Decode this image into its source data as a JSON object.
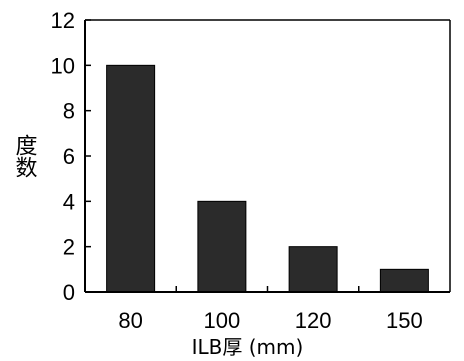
{
  "chart_data": {
    "type": "bar",
    "categories": [
      "80",
      "100",
      "120",
      "150"
    ],
    "values": [
      10,
      4,
      2,
      1
    ],
    "ylim": [
      0,
      12
    ],
    "yticks": [
      "0",
      "2",
      "4",
      "6",
      "8",
      "10",
      "12"
    ],
    "ylabel": "度数",
    "xlabel": "ILB厚 (mm)",
    "grid": false,
    "legend": "none",
    "bar_color": "#2b2b2b"
  }
}
